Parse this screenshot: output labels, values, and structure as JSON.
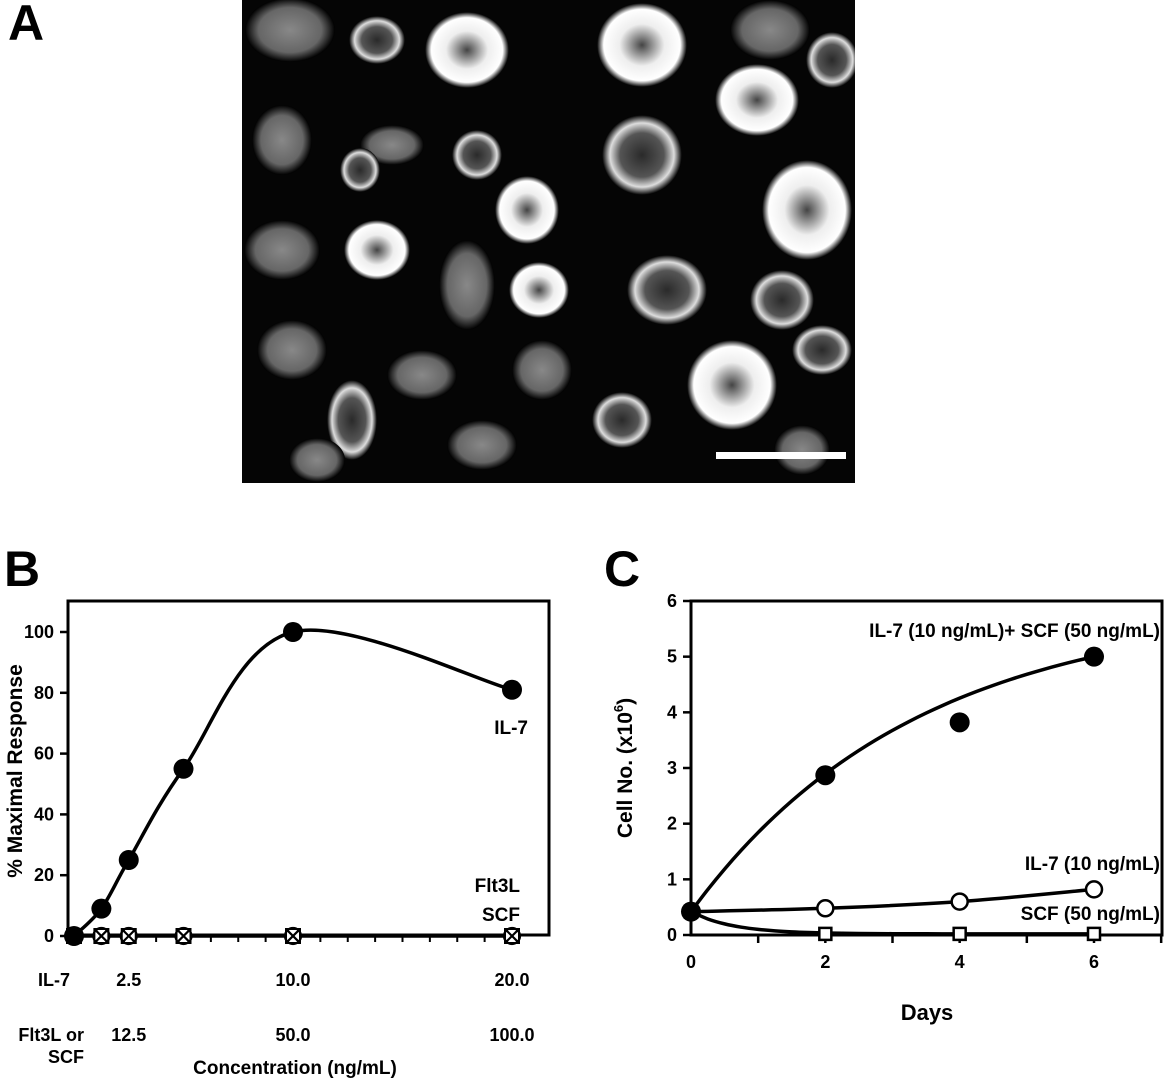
{
  "panels": {
    "a": "A",
    "b": "B",
    "c": "C"
  },
  "colors": {
    "ink": "#000000",
    "open_marker_fill": "#ffffff"
  },
  "chart_data": [
    {
      "type": "line",
      "panel": "B",
      "title": "",
      "ylabel": "% Maximal Response",
      "xlabel": "Concentration (ng/mL)",
      "ylim": [
        0,
        100
      ],
      "yticks": [
        0,
        20,
        40,
        60,
        80,
        100
      ],
      "x_axis_rows": [
        {
          "row_label": "IL-7",
          "ticks": [
            {
              "x": 2.5,
              "label": "2.5"
            },
            {
              "x": 10.0,
              "label": "10.0"
            },
            {
              "x": 20.0,
              "label": "20.0"
            }
          ]
        },
        {
          "row_label": "Flt3L or SCF",
          "ticks": [
            {
              "x": 2.5,
              "label": "12.5"
            },
            {
              "x": 10.0,
              "label": "50.0"
            },
            {
              "x": 20.0,
              "label": "100.0"
            }
          ]
        }
      ],
      "xlim": [
        0,
        21
      ],
      "series": [
        {
          "name": "IL-7",
          "marker": "filled-circle",
          "x": [
            0,
            1.25,
            2.5,
            5,
            10,
            20
          ],
          "y": [
            0,
            9,
            25,
            55,
            100,
            81
          ]
        },
        {
          "name": "Flt3L",
          "marker": "open-circle-cross",
          "x": [
            0,
            1.25,
            2.5,
            5,
            10,
            20
          ],
          "y": [
            0,
            0,
            0,
            0,
            0,
            0
          ]
        },
        {
          "name": "SCF",
          "marker": "open-square-cross",
          "x": [
            0,
            1.25,
            2.5,
            5,
            10,
            20
          ],
          "y": [
            0,
            0,
            0,
            0,
            0,
            0
          ]
        }
      ]
    },
    {
      "type": "line",
      "panel": "C",
      "title": "",
      "xlabel": "Days",
      "ylabel": "Cell No. (x10",
      "ylabel_sup": "6",
      "ylabel_close": ")",
      "xlim": [
        0,
        7
      ],
      "ylim": [
        0,
        6
      ],
      "xticks": [
        0,
        2,
        4,
        6
      ],
      "yticks": [
        0,
        1,
        2,
        3,
        4,
        5,
        6
      ],
      "series": [
        {
          "name": "IL-7 (10 ng/mL)+ SCF (50 ng/mL)",
          "marker": "filled-circle",
          "x": [
            0,
            2,
            4,
            6
          ],
          "y": [
            0.42,
            2.87,
            3.82,
            5.0
          ]
        },
        {
          "name": "IL-7 (10 ng/mL)",
          "marker": "open-circle",
          "x": [
            0,
            2,
            4,
            6
          ],
          "y": [
            0.42,
            0.48,
            0.6,
            0.82
          ]
        },
        {
          "name": "SCF (50 ng/mL)",
          "marker": "open-square",
          "x": [
            0,
            2,
            4,
            6
          ],
          "y": [
            0.42,
            0.02,
            0.02,
            0.02
          ]
        }
      ]
    }
  ]
}
